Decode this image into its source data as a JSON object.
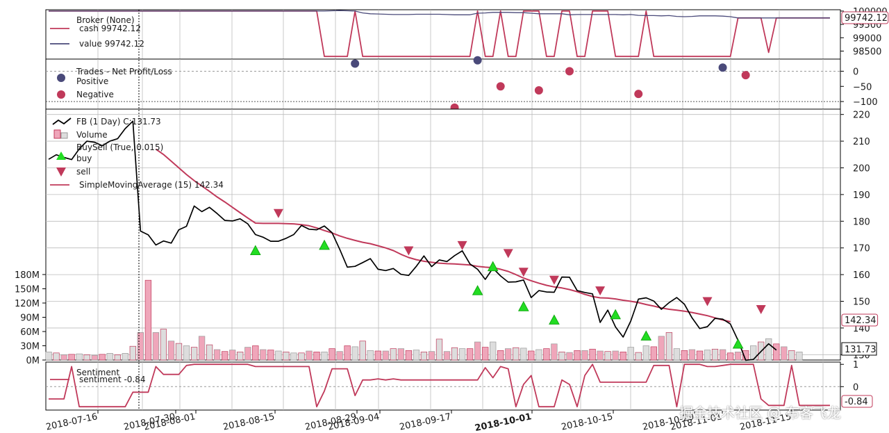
{
  "chart_data": [
    {
      "panel": "broker",
      "type": "line",
      "y_ticks": [
        "98500",
        "99000",
        "99500",
        "100000"
      ],
      "ylim": [
        98200,
        100050
      ],
      "legend_title": "Broker (None)",
      "series": [
        {
          "name": "cash 99742.12",
          "color": "#c0395a",
          "values": [
            100000,
            100000,
            100000,
            100000,
            100000,
            100000,
            100000,
            100000,
            100000,
            100000,
            100000,
            100000,
            100000,
            100000,
            100000,
            100000,
            100000,
            100000,
            100000,
            100000,
            100000,
            100000,
            100000,
            100000,
            100000,
            100000,
            100000,
            100000,
            100000,
            100000,
            100000,
            100000,
            100000,
            100000,
            100000,
            100000,
            98300,
            98300,
            98300,
            98300,
            100000,
            98300,
            98300,
            98300,
            98300,
            98300,
            98300,
            98300,
            98300,
            98300,
            98300,
            98300,
            98300,
            98300,
            98300,
            98300,
            100000,
            98300,
            98300,
            100000,
            98300,
            98300,
            100000,
            100000,
            100000,
            98300,
            98300,
            100000,
            100000,
            98300,
            98300,
            100000,
            100000,
            100000,
            98300,
            98300,
            98300,
            98300,
            100000,
            98300,
            98300,
            98300,
            98300,
            98300,
            98300,
            98300,
            98300,
            98300,
            98300,
            98300,
            99742,
            99742,
            99742,
            99742,
            98450,
            99742,
            99742,
            99742,
            99742,
            99742,
            99742,
            99742,
            99742
          ]
        },
        {
          "name": "value 99742.12",
          "color": "#4a4a7a",
          "values": [
            100000,
            100000,
            100000,
            100000,
            100000,
            100000,
            100000,
            100000,
            100000,
            100000,
            100000,
            100000,
            100000,
            100000,
            100000,
            100000,
            100000,
            100000,
            100000,
            100000,
            100000,
            100000,
            100000,
            100000,
            100000,
            100000,
            100000,
            100000,
            100000,
            100000,
            100000,
            100000,
            100000,
            100000,
            100000,
            100000,
            100000,
            100010,
            100020,
            100010,
            100000,
            99930,
            99900,
            99890,
            99880,
            99870,
            99870,
            99870,
            99880,
            99880,
            99880,
            99880,
            99870,
            99860,
            99860,
            99860,
            99920,
            99930,
            99950,
            99950,
            99950,
            99940,
            99940,
            99920,
            99900,
            99900,
            99900,
            99900,
            99860,
            99870,
            99870,
            99870,
            99870,
            99870,
            99870,
            99860,
            99870,
            99840,
            99830,
            99830,
            99820,
            99830,
            99800,
            99790,
            99800,
            99820,
            99820,
            99820,
            99810,
            99790,
            99742,
            99742,
            99742,
            99742,
            99742,
            99742,
            99742,
            99742,
            99742,
            99742,
            99742,
            99742,
            99742
          ]
        }
      ],
      "last_value_label": "99742.12"
    },
    {
      "panel": "trades",
      "type": "scatter",
      "legend_title": "Trades - Net Profit/Loss",
      "y_ticks": [
        "0",
        "−50",
        "−100"
      ],
      "ylim": [
        -125,
        40
      ],
      "series": [
        {
          "name": "Positive",
          "color": "#4a4a7a",
          "points": [
            [
              40,
              25
            ],
            [
              56,
              36
            ],
            [
              88,
              12
            ]
          ]
        },
        {
          "name": "Negative",
          "color": "#c0395a",
          "points": [
            [
              53,
              -120
            ],
            [
              59,
              -50
            ],
            [
              64,
              -63
            ],
            [
              68,
              0
            ],
            [
              77,
              -75
            ],
            [
              91,
              -13
            ]
          ]
        }
      ]
    },
    {
      "panel": "price",
      "type": "line",
      "y_ticks": [
        "130",
        "140",
        "150",
        "160",
        "170",
        "180",
        "190",
        "200",
        "210",
        "220"
      ],
      "ylim": [
        128,
        222
      ],
      "series": [
        {
          "name": "FB (1 Day) C:131.73",
          "color": "#000000",
          "values": [
            203.2,
            204.9,
            203.9,
            203.1,
            207.1,
            210.0,
            209.6,
            208.3,
            210.0,
            210.9,
            214.7,
            217.5,
            176.3,
            174.9,
            171.1,
            172.6,
            171.8,
            176.8,
            178.1,
            185.7,
            183.6,
            185.2,
            182.9,
            180.3,
            180.1,
            180.9,
            179.0,
            175.0,
            174.0,
            172.5,
            172.5,
            173.6,
            175.0,
            178.4,
            177.0,
            176.8,
            178.2,
            175.7,
            169.5,
            162.8,
            163.1,
            164.5,
            166.0,
            162.0,
            161.5,
            162.3,
            160.1,
            159.7,
            163.1,
            167.0,
            163.0,
            165.5,
            164.9,
            167.1,
            168.9,
            164.0,
            162.0,
            158.2,
            162.4,
            159.5,
            157.2,
            157.3,
            158.0,
            151.4,
            154.0,
            153.5,
            153.4,
            159.1,
            159.0,
            154.0,
            153.3,
            152.8,
            142.1,
            146.7,
            140.4,
            136.6,
            142.6,
            150.8,
            151.3,
            150.1,
            147.0,
            149.5,
            151.4,
            148.9,
            143.8,
            139.8,
            140.5,
            143.6,
            143.3,
            141.5,
            135.4,
            127.9,
            128.2,
            131.2,
            134.1,
            131.73
          ]
        },
        {
          "name": "SimpleMovingAverage (15) 142.34",
          "color": "#c0395a",
          "start": 14,
          "values": [
            207.0,
            205.0,
            202.5,
            200.0,
            197.5,
            195.2,
            193.2,
            191.2,
            189.1,
            187.2,
            185.2,
            183.2,
            181.2,
            179.3,
            179.2,
            179.2,
            179.2,
            179.1,
            179.0,
            178.7,
            178.3,
            177.5,
            176.5,
            175.6,
            174.5,
            173.6,
            172.8,
            172.1,
            171.6,
            170.8,
            170.0,
            169.0,
            167.6,
            166.4,
            165.6,
            165.0,
            164.6,
            164.3,
            164.1,
            164.0,
            163.8,
            163.6,
            163.1,
            162.8,
            162.6,
            162.0,
            161.2,
            160.0,
            158.7,
            157.7,
            156.8,
            156.0,
            155.4,
            155.0,
            154.4,
            153.6,
            152.6,
            151.8,
            151.3,
            151.2,
            150.9,
            150.4,
            150.0,
            149.5,
            148.8,
            148.2,
            147.5,
            147.0,
            146.7,
            146.3,
            145.8,
            145.2,
            144.6,
            143.8,
            143.0,
            142.34
          ]
        },
        {
          "name": "buy",
          "color": "#22dd22",
          "type": "marker",
          "points": [
            [
              27,
              169
            ],
            [
              36,
              171
            ],
            [
              56,
              154
            ],
            [
              58,
              163
            ],
            [
              62,
              148
            ],
            [
              66,
              143
            ],
            [
              74,
              145
            ],
            [
              78,
              137
            ],
            [
              90,
              134
            ]
          ]
        },
        {
          "name": "sell",
          "color": "#c0395a",
          "type": "marker",
          "points": [
            [
              30,
              183
            ],
            [
              47,
              169
            ],
            [
              54,
              171
            ],
            [
              60,
              168
            ],
            [
              62,
              161
            ],
            [
              66,
              158
            ],
            [
              72,
              154
            ],
            [
              86,
              150
            ],
            [
              93,
              147
            ]
          ]
        }
      ],
      "legend_extra": [
        "Volume",
        "BuySell (True, 0.015)"
      ],
      "last_value_labels": [
        "142.34",
        "131.73"
      ]
    },
    {
      "panel": "volume",
      "type": "bar",
      "y_ticks": [
        "0M",
        "30M",
        "60M",
        "90M",
        "120M",
        "150M",
        "180M"
      ],
      "ylim": [
        0,
        180
      ],
      "values": [
        17,
        15,
        11,
        12,
        13,
        11,
        10,
        12,
        14,
        11,
        14,
        29,
        58,
        168,
        58,
        65,
        40,
        35,
        30,
        27,
        50,
        32,
        22,
        18,
        21,
        17,
        27,
        30,
        22,
        21,
        19,
        17,
        15,
        15,
        19,
        17,
        17,
        24,
        18,
        30,
        28,
        40,
        20,
        19,
        19,
        24,
        24,
        20,
        21,
        17,
        18,
        44,
        18,
        26,
        24,
        24,
        38,
        27,
        38,
        20,
        24,
        26,
        25,
        19,
        22,
        24,
        34,
        17,
        16,
        20,
        20,
        23,
        19,
        18,
        19,
        17,
        27,
        16,
        30,
        28,
        50,
        58,
        24,
        20,
        22,
        19,
        21,
        23,
        22,
        15,
        17,
        20,
        30,
        38,
        45,
        34,
        28,
        20,
        17
      ]
    },
    {
      "panel": "sentiment",
      "type": "line",
      "legend_title": "Sentiment",
      "y_ticks": [
        "1",
        "0",
        "−1"
      ],
      "ylim": [
        -1.05,
        1.1
      ],
      "series": [
        {
          "name": "sentiment -0.84",
          "color": "#c0395a",
          "values": [
            -0.55,
            -0.55,
            -0.55,
            0.9,
            -0.9,
            -0.9,
            -0.9,
            -0.9,
            -0.9,
            -0.9,
            -0.9,
            -0.25,
            -0.25,
            -0.25,
            0.9,
            0.55,
            0.55,
            0.55,
            0.95,
            1,
            1,
            1,
            1,
            1,
            1,
            1,
            1,
            0.9,
            0.9,
            0.9,
            0.9,
            0.9,
            0.9,
            0.9,
            0.9,
            -0.9,
            -0.2,
            0.8,
            0.8,
            0.8,
            -0.4,
            0.3,
            0.3,
            0.35,
            0.3,
            0.35,
            0.3,
            0.3,
            0.3,
            0.3,
            0.3,
            0.3,
            0.3,
            0.3,
            0.3,
            0.3,
            0.3,
            0.85,
            0.4,
            0.9,
            0.8,
            -0.9,
            0.1,
            0.5,
            -0.9,
            -0.9,
            -0.9,
            0.3,
            0.1,
            -0.9,
            0.5,
            1,
            0.2,
            0.2,
            0.2,
            0.2,
            0.2,
            0.2,
            0.2,
            0.95,
            0.95,
            0.95,
            -0.9,
            1,
            1,
            1,
            0.9,
            0.9,
            0.95,
            1,
            1,
            1,
            1,
            -0.55,
            -0.84,
            -0.84,
            -0.84,
            0.95,
            -0.84,
            -0.84,
            -0.84,
            -0.84,
            -0.84
          ]
        }
      ],
      "last_value_label": "-0.84"
    }
  ],
  "x_axis": {
    "labels": [
      "2018-07-16",
      "2018-07-30",
      "2018-08-01",
      "2018-08-15",
      "2018-08-29",
      "2018-09-04",
      "2018-09-17",
      "2018-10-01",
      "2018-10-15",
      "2018-10-29",
      "2018-11-01",
      "2018-11-15"
    ],
    "bold_label": "2018-10-01"
  },
  "watermark": "掘金技术社区 @ 布客飞龙"
}
